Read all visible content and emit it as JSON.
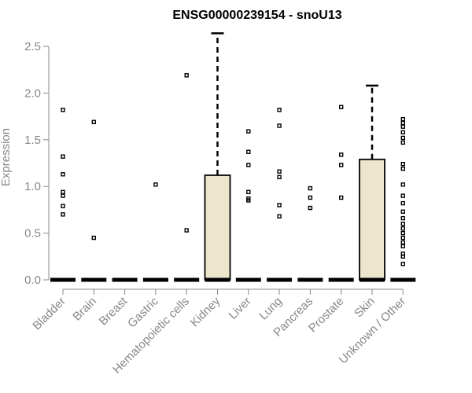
{
  "chart_data": {
    "type": "box",
    "title": "ENSG00000239154 - snoU13",
    "ylabel": "Expression",
    "xlabel": "",
    "ylim": [
      0,
      2.5
    ],
    "yticks": [
      0.0,
      0.5,
      1.0,
      1.5,
      2.0,
      2.5
    ],
    "yticklabels": [
      "0.0",
      "0.5",
      "1.0",
      "1.5",
      "2.0",
      "2.5"
    ],
    "categories": [
      "Bladder",
      "Brain",
      "Breast",
      "Gastric",
      "Hematopoietic cells",
      "Kidney",
      "Liver",
      "Lung",
      "Pancreas",
      "Prostate",
      "Skin",
      "Unknown / Other"
    ],
    "boxes": [
      {
        "min": 0,
        "q1": 0,
        "median": 0,
        "q3": 0,
        "max": 0,
        "outliers": [
          1.82,
          1.32,
          1.13,
          0.94,
          0.9,
          0.79,
          0.7
        ]
      },
      {
        "min": 0,
        "q1": 0,
        "median": 0,
        "q3": 0,
        "max": 0,
        "outliers": [
          1.69,
          0.45
        ]
      },
      {
        "min": 0,
        "q1": 0,
        "median": 0,
        "q3": 0,
        "max": 0,
        "outliers": []
      },
      {
        "min": 0,
        "q1": 0,
        "median": 0,
        "q3": 0,
        "max": 0,
        "outliers": [
          1.02
        ]
      },
      {
        "min": 0,
        "q1": 0,
        "median": 0,
        "q3": 0,
        "max": 0,
        "outliers": [
          2.19,
          0.53
        ]
      },
      {
        "min": 0,
        "q1": 0,
        "median": 0,
        "q3": 1.12,
        "max": 2.64,
        "outliers": []
      },
      {
        "min": 0,
        "q1": 0,
        "median": 0,
        "q3": 0,
        "max": 0,
        "outliers": [
          1.59,
          1.37,
          1.23,
          0.94,
          0.87,
          0.85
        ]
      },
      {
        "min": 0,
        "q1": 0,
        "median": 0,
        "q3": 0,
        "max": 0,
        "outliers": [
          1.82,
          1.65,
          1.16,
          1.1,
          0.8,
          0.68
        ]
      },
      {
        "min": 0,
        "q1": 0,
        "median": 0,
        "q3": 0,
        "max": 0,
        "outliers": [
          0.98,
          0.88,
          0.77
        ]
      },
      {
        "min": 0,
        "q1": 0,
        "median": 0,
        "q3": 0,
        "max": 0,
        "outliers": [
          1.85,
          1.34,
          1.23,
          0.88
        ]
      },
      {
        "min": 0,
        "q1": 0,
        "median": 0,
        "q3": 1.29,
        "max": 2.08,
        "outliers": []
      },
      {
        "min": 0,
        "q1": 0,
        "median": 0,
        "q3": 0,
        "max": 0,
        "outliers": [
          1.72,
          1.68,
          1.64,
          1.58,
          1.52,
          1.47,
          1.24,
          1.19,
          1.02,
          0.9,
          0.82,
          0.73,
          0.66,
          0.6,
          0.55,
          0.5,
          0.45,
          0.4,
          0.36,
          0.28,
          0.25,
          0.17
        ]
      }
    ],
    "box_fill": "#ece6cd",
    "box_stroke": "#000000",
    "label_color": "#888888",
    "grid": false
  }
}
